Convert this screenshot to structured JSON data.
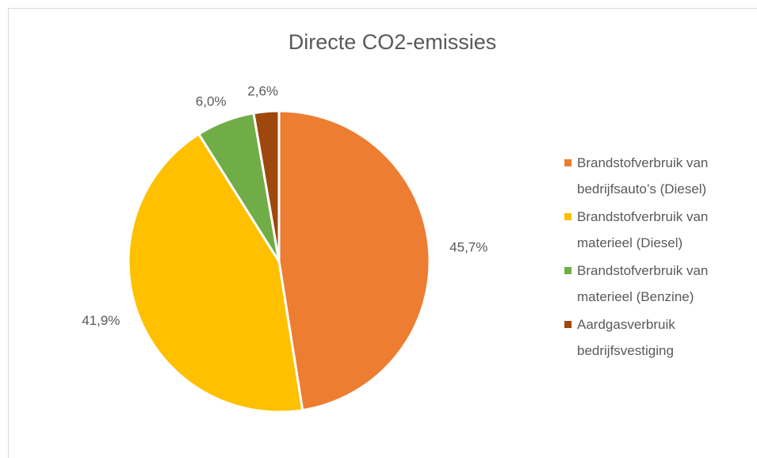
{
  "chart_data": {
    "type": "pie",
    "title": "Directe CO2-emissies",
    "categories": [
      "Brandstofverbruik van bedrijfsauto’s (Diesel)",
      "Brandstofverbruik van materieel (Diesel)",
      "Brandstofverbruik van materieel (Benzine)",
      "Aardgasverbruik bedrijfsvestiging"
    ],
    "values": [
      45.7,
      41.9,
      6.0,
      2.6
    ],
    "value_labels": [
      "45,7%",
      "41,9%",
      "6,0%",
      "2,6%"
    ],
    "colors": [
      "#ed7d31",
      "#ffc000",
      "#70ad47",
      "#9e480e"
    ],
    "legend": "right"
  }
}
